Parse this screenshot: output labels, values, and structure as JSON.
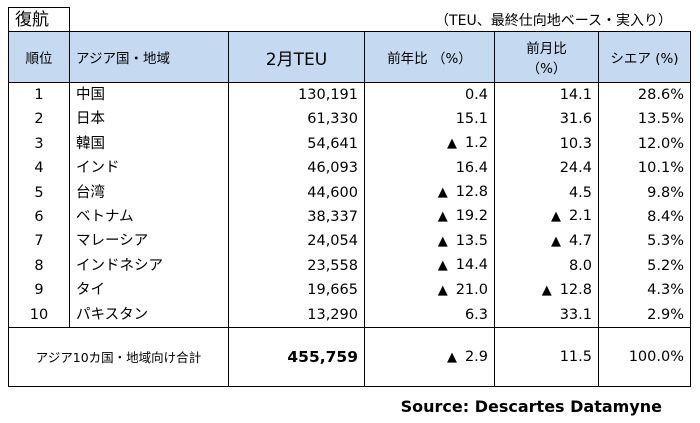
{
  "tag": "復航",
  "note": "（TEU、最終仕向地ベース・実入り）",
  "headers": {
    "rank": "順位",
    "region": "アジア国・地域",
    "teu": "2月TEU",
    "yoy": "前年比 （%）",
    "mom_line1": "前月比",
    "mom_line2": "（%）",
    "share": "シエア (%)"
  },
  "rows": [
    {
      "rank": "1",
      "name": "中国",
      "teu": "130,191",
      "yoy_neg": false,
      "yoy": "0.4",
      "mom_neg": false,
      "mom": "14.1",
      "share": "28.6%"
    },
    {
      "rank": "2",
      "name": "日本",
      "teu": "61,330",
      "yoy_neg": false,
      "yoy": "15.1",
      "mom_neg": false,
      "mom": "31.6",
      "share": "13.5%"
    },
    {
      "rank": "3",
      "name": "韓国",
      "teu": "54,641",
      "yoy_neg": true,
      "yoy": "1.2",
      "mom_neg": false,
      "mom": "10.3",
      "share": "12.0%"
    },
    {
      "rank": "4",
      "name": "インド",
      "teu": "46,093",
      "yoy_neg": false,
      "yoy": "16.4",
      "mom_neg": false,
      "mom": "24.4",
      "share": "10.1%"
    },
    {
      "rank": "5",
      "name": "台湾",
      "teu": "44,600",
      "yoy_neg": true,
      "yoy": "12.8",
      "mom_neg": false,
      "mom": "4.5",
      "share": "9.8%"
    },
    {
      "rank": "6",
      "name": "ベトナム",
      "teu": "38,337",
      "yoy_neg": true,
      "yoy": "19.2",
      "mom_neg": true,
      "mom": "2.1",
      "share": "8.4%"
    },
    {
      "rank": "7",
      "name": "マレーシア",
      "teu": "24,054",
      "yoy_neg": true,
      "yoy": "13.5",
      "mom_neg": true,
      "mom": "4.7",
      "share": "5.3%"
    },
    {
      "rank": "8",
      "name": "インドネシア",
      "teu": "23,558",
      "yoy_neg": true,
      "yoy": "14.4",
      "mom_neg": false,
      "mom": "8.0",
      "share": "5.2%"
    },
    {
      "rank": "9",
      "name": "タイ",
      "teu": "19,665",
      "yoy_neg": true,
      "yoy": "21.0",
      "mom_neg": true,
      "mom": "12.8",
      "share": "4.3%"
    },
    {
      "rank": "10",
      "name": "パキスタン",
      "teu": "13,290",
      "yoy_neg": false,
      "yoy": "6.3",
      "mom_neg": false,
      "mom": "33.1",
      "share": "2.9%"
    }
  ],
  "total": {
    "label": "アジア10カ国・地域向け合計",
    "teu": "455,759",
    "yoy_neg": true,
    "yoy": "2.9",
    "mom_neg": false,
    "mom": "11.5",
    "share": "100.0%"
  },
  "triangle": "▲",
  "source": "Source: Descartes Datamyne"
}
